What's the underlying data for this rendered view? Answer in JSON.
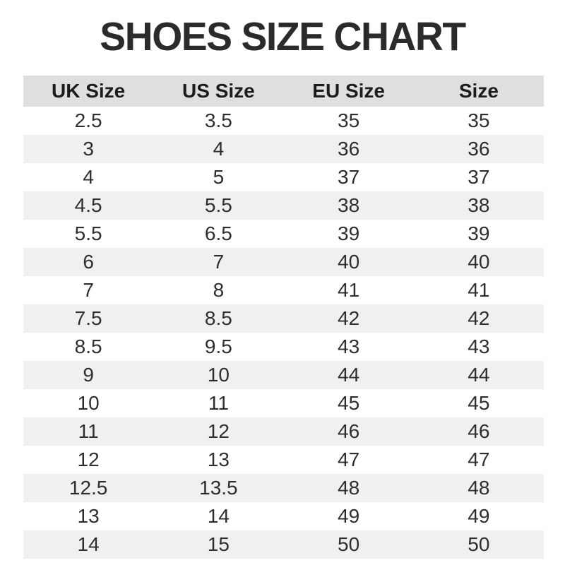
{
  "title": "SHOES SIZE CHART",
  "colors": {
    "title_text": "#2b2b2b",
    "header_bg": "#dfdfdf",
    "header_text": "#1c1c1c",
    "alt_row_bg": "#f0f0f0",
    "cell_text": "#2e2e2e"
  },
  "chart_data": {
    "type": "table",
    "title": "SHOES SIZE CHART",
    "columns": [
      "UK Size",
      "US Size",
      "EU Size",
      "Size"
    ],
    "rows": [
      [
        "2.5",
        "3.5",
        "35",
        "35"
      ],
      [
        "3",
        "4",
        "36",
        "36"
      ],
      [
        "4",
        "5",
        "37",
        "37"
      ],
      [
        "4.5",
        "5.5",
        "38",
        "38"
      ],
      [
        "5.5",
        "6.5",
        "39",
        "39"
      ],
      [
        "6",
        "7",
        "40",
        "40"
      ],
      [
        "7",
        "8",
        "41",
        "41"
      ],
      [
        "7.5",
        "8.5",
        "42",
        "42"
      ],
      [
        "8.5",
        "9.5",
        "43",
        "43"
      ],
      [
        "9",
        "10",
        "44",
        "44"
      ],
      [
        "10",
        "11",
        "45",
        "45"
      ],
      [
        "11",
        "12",
        "46",
        "46"
      ],
      [
        "12",
        "13",
        "47",
        "47"
      ],
      [
        "12.5",
        "13.5",
        "48",
        "48"
      ],
      [
        "13",
        "14",
        "49",
        "49"
      ],
      [
        "14",
        "15",
        "50",
        "50"
      ]
    ],
    "layout": {
      "header_background": "alternating row shading, header darker gray",
      "alternating_rows": true,
      "first_data_row_background": "white"
    }
  }
}
